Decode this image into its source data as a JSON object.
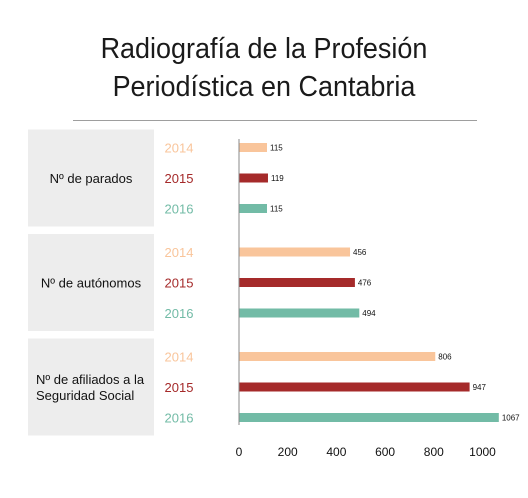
{
  "title_lines": [
    "Radiografía de la Profesión",
    "Periodística en Cantabria"
  ],
  "colors": {
    "2014": "#f9c59b",
    "2015": "#a52a2a",
    "2016": "#72bba6"
  },
  "chart_data": {
    "type": "bar",
    "orientation": "horizontal",
    "title": "Radiografía de la Profesión Periodística en Cantabria",
    "groups": [
      {
        "label_lines": [
          "Nº de parados"
        ],
        "years": [
          "2014",
          "2015",
          "2016"
        ],
        "values": [
          115,
          119,
          115
        ]
      },
      {
        "label_lines": [
          "Nº de autónomos"
        ],
        "years": [
          "2014",
          "2015",
          "2016"
        ],
        "values": [
          456,
          476,
          494
        ]
      },
      {
        "label_lines": [
          "Nº de afiliados a la",
          "Seguridad Social"
        ],
        "years": [
          "2014",
          "2015",
          "2016"
        ],
        "values": [
          806,
          947,
          1067
        ]
      }
    ],
    "xlim": [
      0,
      1067
    ],
    "xticks": [
      0,
      200,
      400,
      600,
      800,
      1000
    ],
    "grid": false,
    "legend": "none"
  }
}
